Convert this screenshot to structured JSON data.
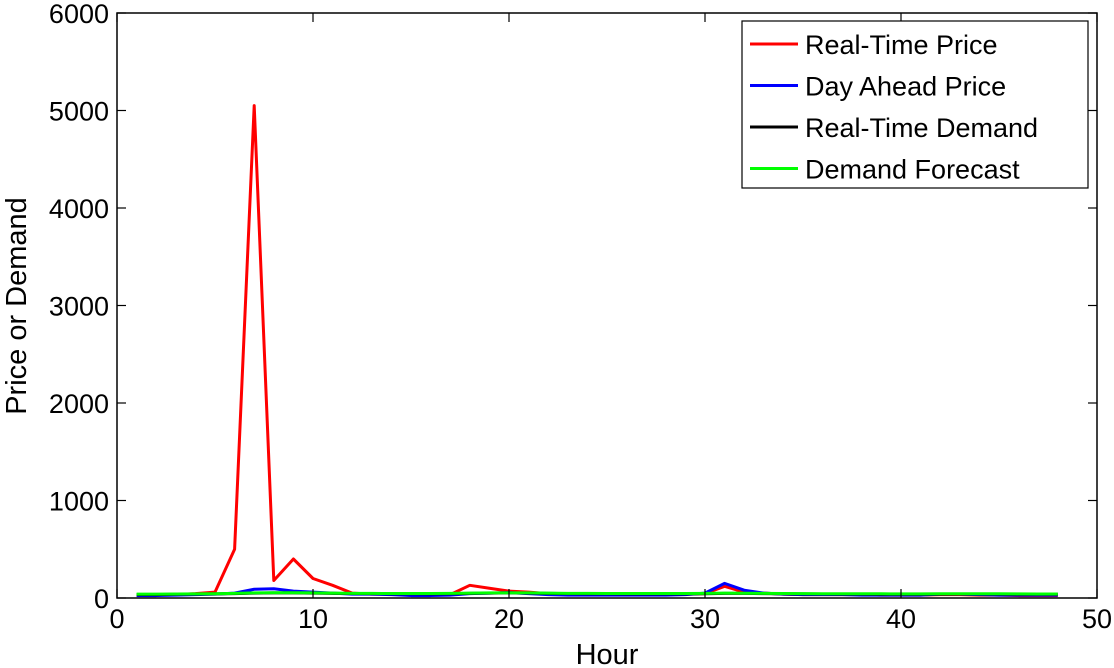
{
  "chart_data": {
    "type": "line",
    "title": "",
    "xlabel": "Hour",
    "ylabel": "Price or Demand",
    "xlim": [
      0,
      50
    ],
    "ylim": [
      0,
      6000
    ],
    "xticks": [
      0,
      10,
      20,
      30,
      40,
      50
    ],
    "yticks": [
      0,
      1000,
      2000,
      3000,
      4000,
      5000,
      6000
    ],
    "grid": false,
    "legend_position": "top-right",
    "x": [
      1,
      2,
      3,
      4,
      5,
      6,
      7,
      8,
      9,
      10,
      11,
      12,
      13,
      14,
      15,
      16,
      17,
      18,
      19,
      20,
      21,
      22,
      23,
      24,
      25,
      26,
      27,
      28,
      29,
      30,
      31,
      32,
      33,
      34,
      35,
      36,
      37,
      38,
      39,
      40,
      41,
      42,
      43,
      44,
      45,
      46,
      47,
      48
    ],
    "series": [
      {
        "name": "Real-Time Price",
        "color": "#ff0000",
        "values": [
          30,
          30,
          35,
          45,
          60,
          500,
          5050,
          180,
          400,
          200,
          130,
          50,
          40,
          40,
          35,
          30,
          35,
          130,
          100,
          70,
          60,
          45,
          40,
          40,
          40,
          40,
          40,
          40,
          40,
          45,
          120,
          60,
          50,
          40,
          35,
          35,
          35,
          35,
          30,
          30,
          30,
          35,
          35,
          30,
          30,
          25,
          25,
          25
        ]
      },
      {
        "name": "Day Ahead Price",
        "color": "#0000ff",
        "values": [
          25,
          25,
          30,
          35,
          40,
          50,
          90,
          95,
          70,
          60,
          50,
          40,
          40,
          35,
          25,
          25,
          30,
          45,
          50,
          55,
          45,
          35,
          30,
          30,
          30,
          30,
          30,
          30,
          35,
          50,
          150,
          80,
          50,
          40,
          35,
          35,
          35,
          30,
          30,
          30,
          30,
          40,
          40,
          35,
          30,
          30,
          30,
          30
        ]
      },
      {
        "name": "Real-Time Demand",
        "color": "#000000",
        "values": [
          35,
          35,
          38,
          40,
          42,
          45,
          50,
          52,
          52,
          50,
          48,
          46,
          45,
          44,
          43,
          42,
          44,
          48,
          50,
          52,
          50,
          47,
          45,
          44,
          43,
          42,
          42,
          42,
          42,
          44,
          48,
          47,
          45,
          43,
          42,
          41,
          40,
          40,
          39,
          39,
          39,
          40,
          41,
          41,
          40,
          39,
          38,
          38
        ]
      },
      {
        "name": "Demand Forecast",
        "color": "#00ff00",
        "values": [
          40,
          40,
          41,
          42,
          44,
          47,
          52,
          54,
          54,
          52,
          50,
          48,
          47,
          46,
          46,
          46,
          47,
          50,
          52,
          53,
          52,
          50,
          48,
          47,
          46,
          46,
          46,
          46,
          46,
          47,
          50,
          49,
          47,
          46,
          45,
          44,
          43,
          43,
          43,
          42,
          42,
          43,
          44,
          44,
          43,
          42,
          41,
          41
        ]
      }
    ]
  }
}
